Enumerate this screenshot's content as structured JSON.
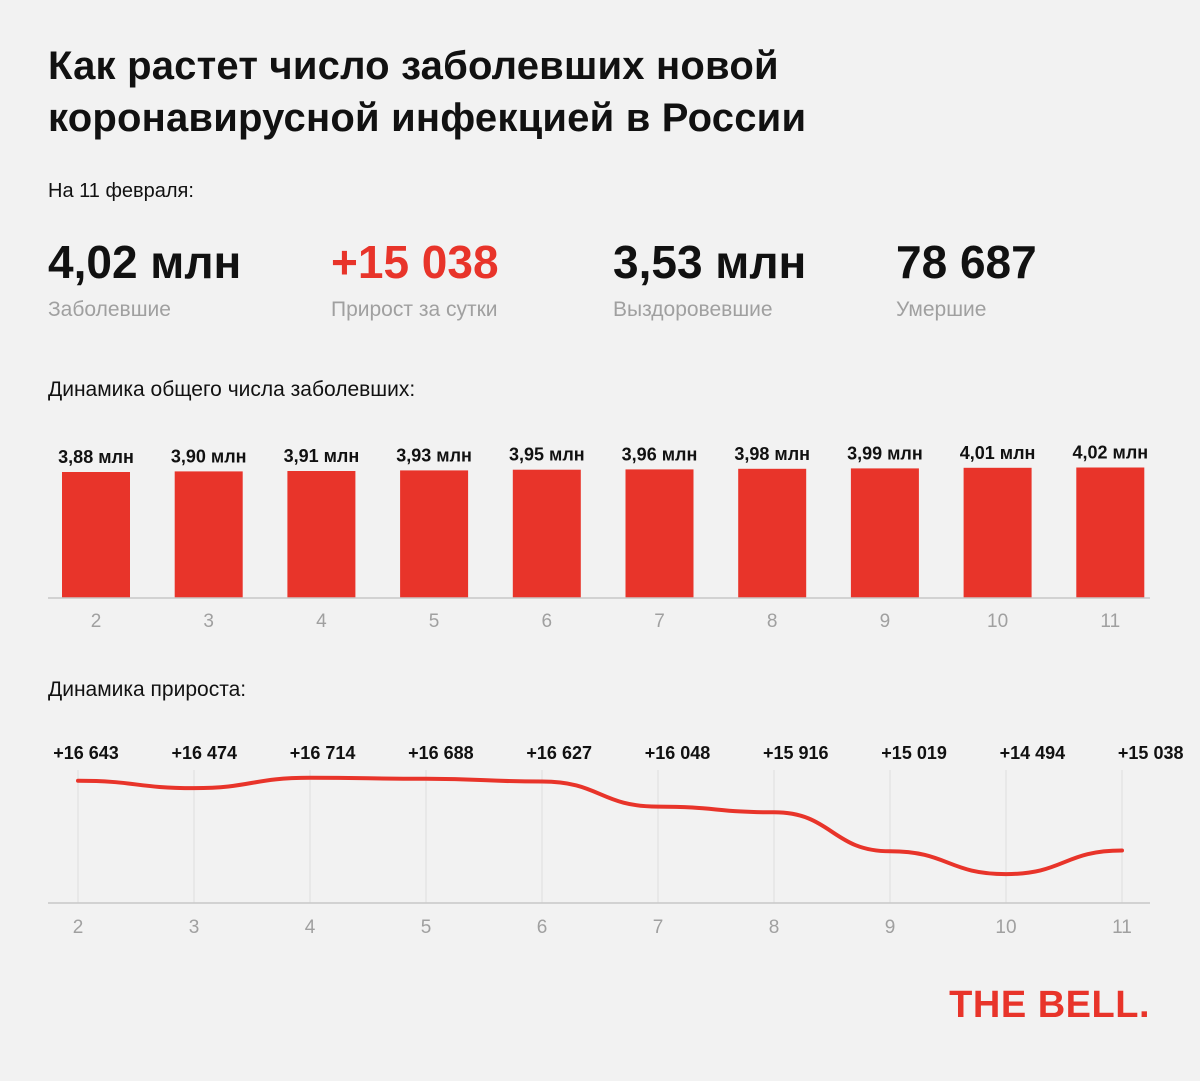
{
  "title_line1": "Как растет число заболевших новой",
  "title_line2": "коронавирусной инфекцией в России",
  "as_of": "На 11 февраля:",
  "stats": [
    {
      "value": "4,02 млн",
      "label": "Заболевшие"
    },
    {
      "value": "+15 038",
      "label": "Прирост за сутки"
    },
    {
      "value": "3,53 млн",
      "label": "Выздоровевшие"
    },
    {
      "value": "78 687",
      "label": "Умершие"
    }
  ],
  "colors": {
    "accent": "#e8342a",
    "axis": "#c8c8c8",
    "tick": "#a0a0a0",
    "text": "#111111"
  },
  "logo": "THE BELL.",
  "chart_data": [
    {
      "type": "bar",
      "title": "Динамика общего числа заболевших:",
      "categories": [
        "2",
        "3",
        "4",
        "5",
        "6",
        "7",
        "8",
        "9",
        "10",
        "11"
      ],
      "values": [
        3.88,
        3.9,
        3.91,
        3.93,
        3.95,
        3.96,
        3.98,
        3.99,
        4.01,
        4.02
      ],
      "labels": [
        "3,88 млн",
        "3,90 млн",
        "3,91 млн",
        "3,93 млн",
        "3,95 млн",
        "3,96 млн",
        "3,98 млн",
        "3,99 млн",
        "4,01 млн",
        "4,02 млн"
      ],
      "grid": false
    },
    {
      "type": "line",
      "title": "Динамика прироста:",
      "categories": [
        "2",
        "3",
        "4",
        "5",
        "6",
        "7",
        "8",
        "9",
        "10",
        "11"
      ],
      "values": [
        16643,
        16474,
        16714,
        16688,
        16627,
        16048,
        15916,
        15019,
        14494,
        15038
      ],
      "labels": [
        "+16 643",
        "+16 474",
        "+16 714",
        "+16 688",
        "+16 627",
        "+16 048",
        "+15 916",
        "+15 019",
        "+14 494",
        "+15 038"
      ],
      "grid": true
    }
  ]
}
